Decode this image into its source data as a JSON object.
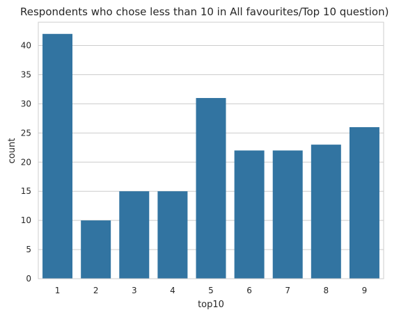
{
  "chart_data": {
    "type": "bar",
    "title": "Respondents who chose less than 10 in All favourites/Top 10 question)",
    "xlabel": "top10",
    "ylabel": "count",
    "categories": [
      "1",
      "2",
      "3",
      "4",
      "5",
      "6",
      "7",
      "8",
      "9"
    ],
    "values": [
      42,
      10,
      15,
      15,
      31,
      22,
      22,
      23,
      26
    ],
    "ylim": [
      0,
      44
    ],
    "yticks": [
      0,
      5,
      10,
      15,
      20,
      25,
      30,
      35,
      40
    ],
    "grid": true,
    "bar_color": "#3274a1",
    "grid_color": "#cccccc",
    "frame_color": "#cccccc"
  }
}
